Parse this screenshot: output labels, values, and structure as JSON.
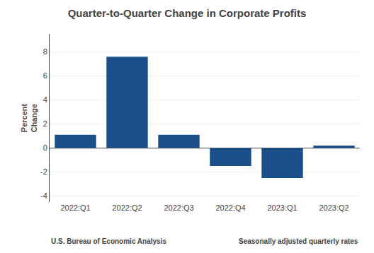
{
  "chart_data": {
    "type": "bar",
    "title": "Quarter-to-Quarter Change in Corporate Profits",
    "ylabel": "Percent\nChange",
    "annotations": [
      "U.S. Bureau of Economic Analysis",
      "Seasonally adjusted quarterly rates"
    ],
    "categories": [
      "2022:Q1",
      "2022:Q2",
      "2022:Q3",
      "2022:Q4",
      "2023:Q1",
      "2023:Q2"
    ],
    "values": [
      1.1,
      7.6,
      1.1,
      -1.5,
      -2.5,
      0.2
    ],
    "color": "#1a4f8a",
    "ylim": [
      -4.5,
      9.5
    ],
    "yticks": [
      -4,
      -2,
      0,
      2,
      4,
      6,
      8
    ],
    "grid": true
  }
}
